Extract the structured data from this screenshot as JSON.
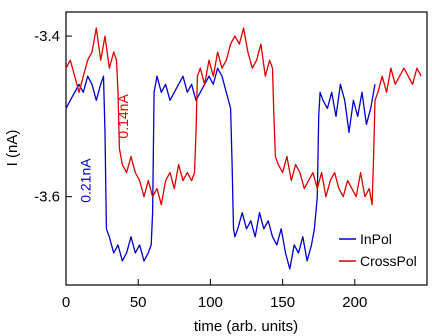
{
  "chart_data": {
    "type": "line",
    "title": "",
    "xlabel": "time (arb. units)",
    "ylabel": "I (nA)",
    "xlim": [
      0,
      250
    ],
    "ylim": [
      -3.71,
      -3.37
    ],
    "x_ticks": [
      0,
      50,
      100,
      150,
      200
    ],
    "y_ticks": [
      -3.4,
      -3.6
    ],
    "grid": false,
    "legend_position": "bottom-right",
    "series": [
      {
        "name": "InPol",
        "color": "#0000cc",
        "x": [
          0,
          3,
          6,
          9,
          12,
          15,
          18,
          21,
          24,
          26,
          27,
          28,
          30,
          33,
          36,
          39,
          42,
          45,
          48,
          51,
          54,
          57,
          59,
          60,
          61,
          63,
          66,
          69,
          72,
          75,
          78,
          81,
          84,
          87,
          90,
          93,
          96,
          99,
          102,
          105,
          108,
          111,
          114,
          115,
          116,
          117,
          119,
          122,
          125,
          128,
          131,
          134,
          137,
          140,
          143,
          146,
          149,
          152,
          155,
          158,
          161,
          164,
          167,
          170,
          172,
          174,
          175,
          176,
          178,
          181,
          184,
          187,
          190,
          193,
          196,
          199,
          202,
          205,
          208,
          211,
          214
        ],
        "y": [
          -3.49,
          -3.48,
          -3.47,
          -3.46,
          -3.47,
          -3.45,
          -3.46,
          -3.48,
          -3.46,
          -3.45,
          -3.52,
          -3.64,
          -3.65,
          -3.67,
          -3.66,
          -3.68,
          -3.67,
          -3.65,
          -3.67,
          -3.66,
          -3.68,
          -3.67,
          -3.66,
          -3.62,
          -3.47,
          -3.45,
          -3.47,
          -3.46,
          -3.48,
          -3.47,
          -3.46,
          -3.45,
          -3.47,
          -3.46,
          -3.48,
          -3.47,
          -3.46,
          -3.45,
          -3.46,
          -3.44,
          -3.45,
          -3.47,
          -3.49,
          -3.56,
          -3.64,
          -3.65,
          -3.64,
          -3.62,
          -3.64,
          -3.63,
          -3.65,
          -3.62,
          -3.64,
          -3.63,
          -3.65,
          -3.66,
          -3.64,
          -3.67,
          -3.69,
          -3.66,
          -3.67,
          -3.65,
          -3.68,
          -3.66,
          -3.64,
          -3.6,
          -3.5,
          -3.47,
          -3.48,
          -3.49,
          -3.47,
          -3.5,
          -3.46,
          -3.48,
          -3.52,
          -3.48,
          -3.5,
          -3.47,
          -3.51,
          -3.49,
          -3.46
        ]
      },
      {
        "name": "CrossPol",
        "color": "#dd0000",
        "x": [
          0,
          3,
          6,
          9,
          12,
          15,
          18,
          21,
          24,
          27,
          30,
          33,
          35,
          36,
          37,
          39,
          42,
          45,
          48,
          51,
          54,
          57,
          60,
          63,
          66,
          69,
          72,
          75,
          78,
          81,
          84,
          87,
          89,
          90,
          91,
          93,
          96,
          99,
          102,
          105,
          108,
          111,
          114,
          117,
          120,
          123,
          126,
          129,
          132,
          135,
          138,
          141,
          143,
          144,
          145,
          147,
          150,
          153,
          156,
          159,
          162,
          165,
          168,
          171,
          174,
          177,
          180,
          183,
          186,
          189,
          192,
          195,
          198,
          201,
          204,
          207,
          210,
          212,
          213,
          214,
          216,
          219,
          222,
          225,
          228,
          231,
          234,
          237,
          240,
          243,
          246
        ],
        "y": [
          -3.44,
          -3.43,
          -3.45,
          -3.47,
          -3.45,
          -3.43,
          -3.42,
          -3.39,
          -3.43,
          -3.4,
          -3.44,
          -3.42,
          -3.43,
          -3.47,
          -3.54,
          -3.56,
          -3.57,
          -3.55,
          -3.57,
          -3.58,
          -3.6,
          -3.58,
          -3.6,
          -3.59,
          -3.61,
          -3.58,
          -3.57,
          -3.59,
          -3.56,
          -3.58,
          -3.57,
          -3.58,
          -3.57,
          -3.52,
          -3.45,
          -3.44,
          -3.46,
          -3.43,
          -3.45,
          -3.42,
          -3.44,
          -3.43,
          -3.41,
          -3.4,
          -3.41,
          -3.39,
          -3.42,
          -3.44,
          -3.43,
          -3.41,
          -3.45,
          -3.43,
          -3.44,
          -3.5,
          -3.55,
          -3.56,
          -3.57,
          -3.55,
          -3.58,
          -3.56,
          -3.57,
          -3.59,
          -3.58,
          -3.57,
          -3.59,
          -3.57,
          -3.6,
          -3.58,
          -3.57,
          -3.59,
          -3.6,
          -3.58,
          -3.59,
          -3.6,
          -3.57,
          -3.6,
          -3.59,
          -3.61,
          -3.55,
          -3.48,
          -3.47,
          -3.45,
          -3.47,
          -3.44,
          -3.46,
          -3.45,
          -3.44,
          -3.45,
          -3.46,
          -3.44,
          -3.45
        ]
      }
    ],
    "annotations": [
      {
        "text": "0.21nA",
        "color": "#0000cc",
        "x": 17,
        "y": -3.58,
        "rotation": -90
      },
      {
        "text": "0.14nA",
        "color": "#dd0000",
        "x": 43,
        "y": -3.5,
        "rotation": -90
      }
    ]
  }
}
